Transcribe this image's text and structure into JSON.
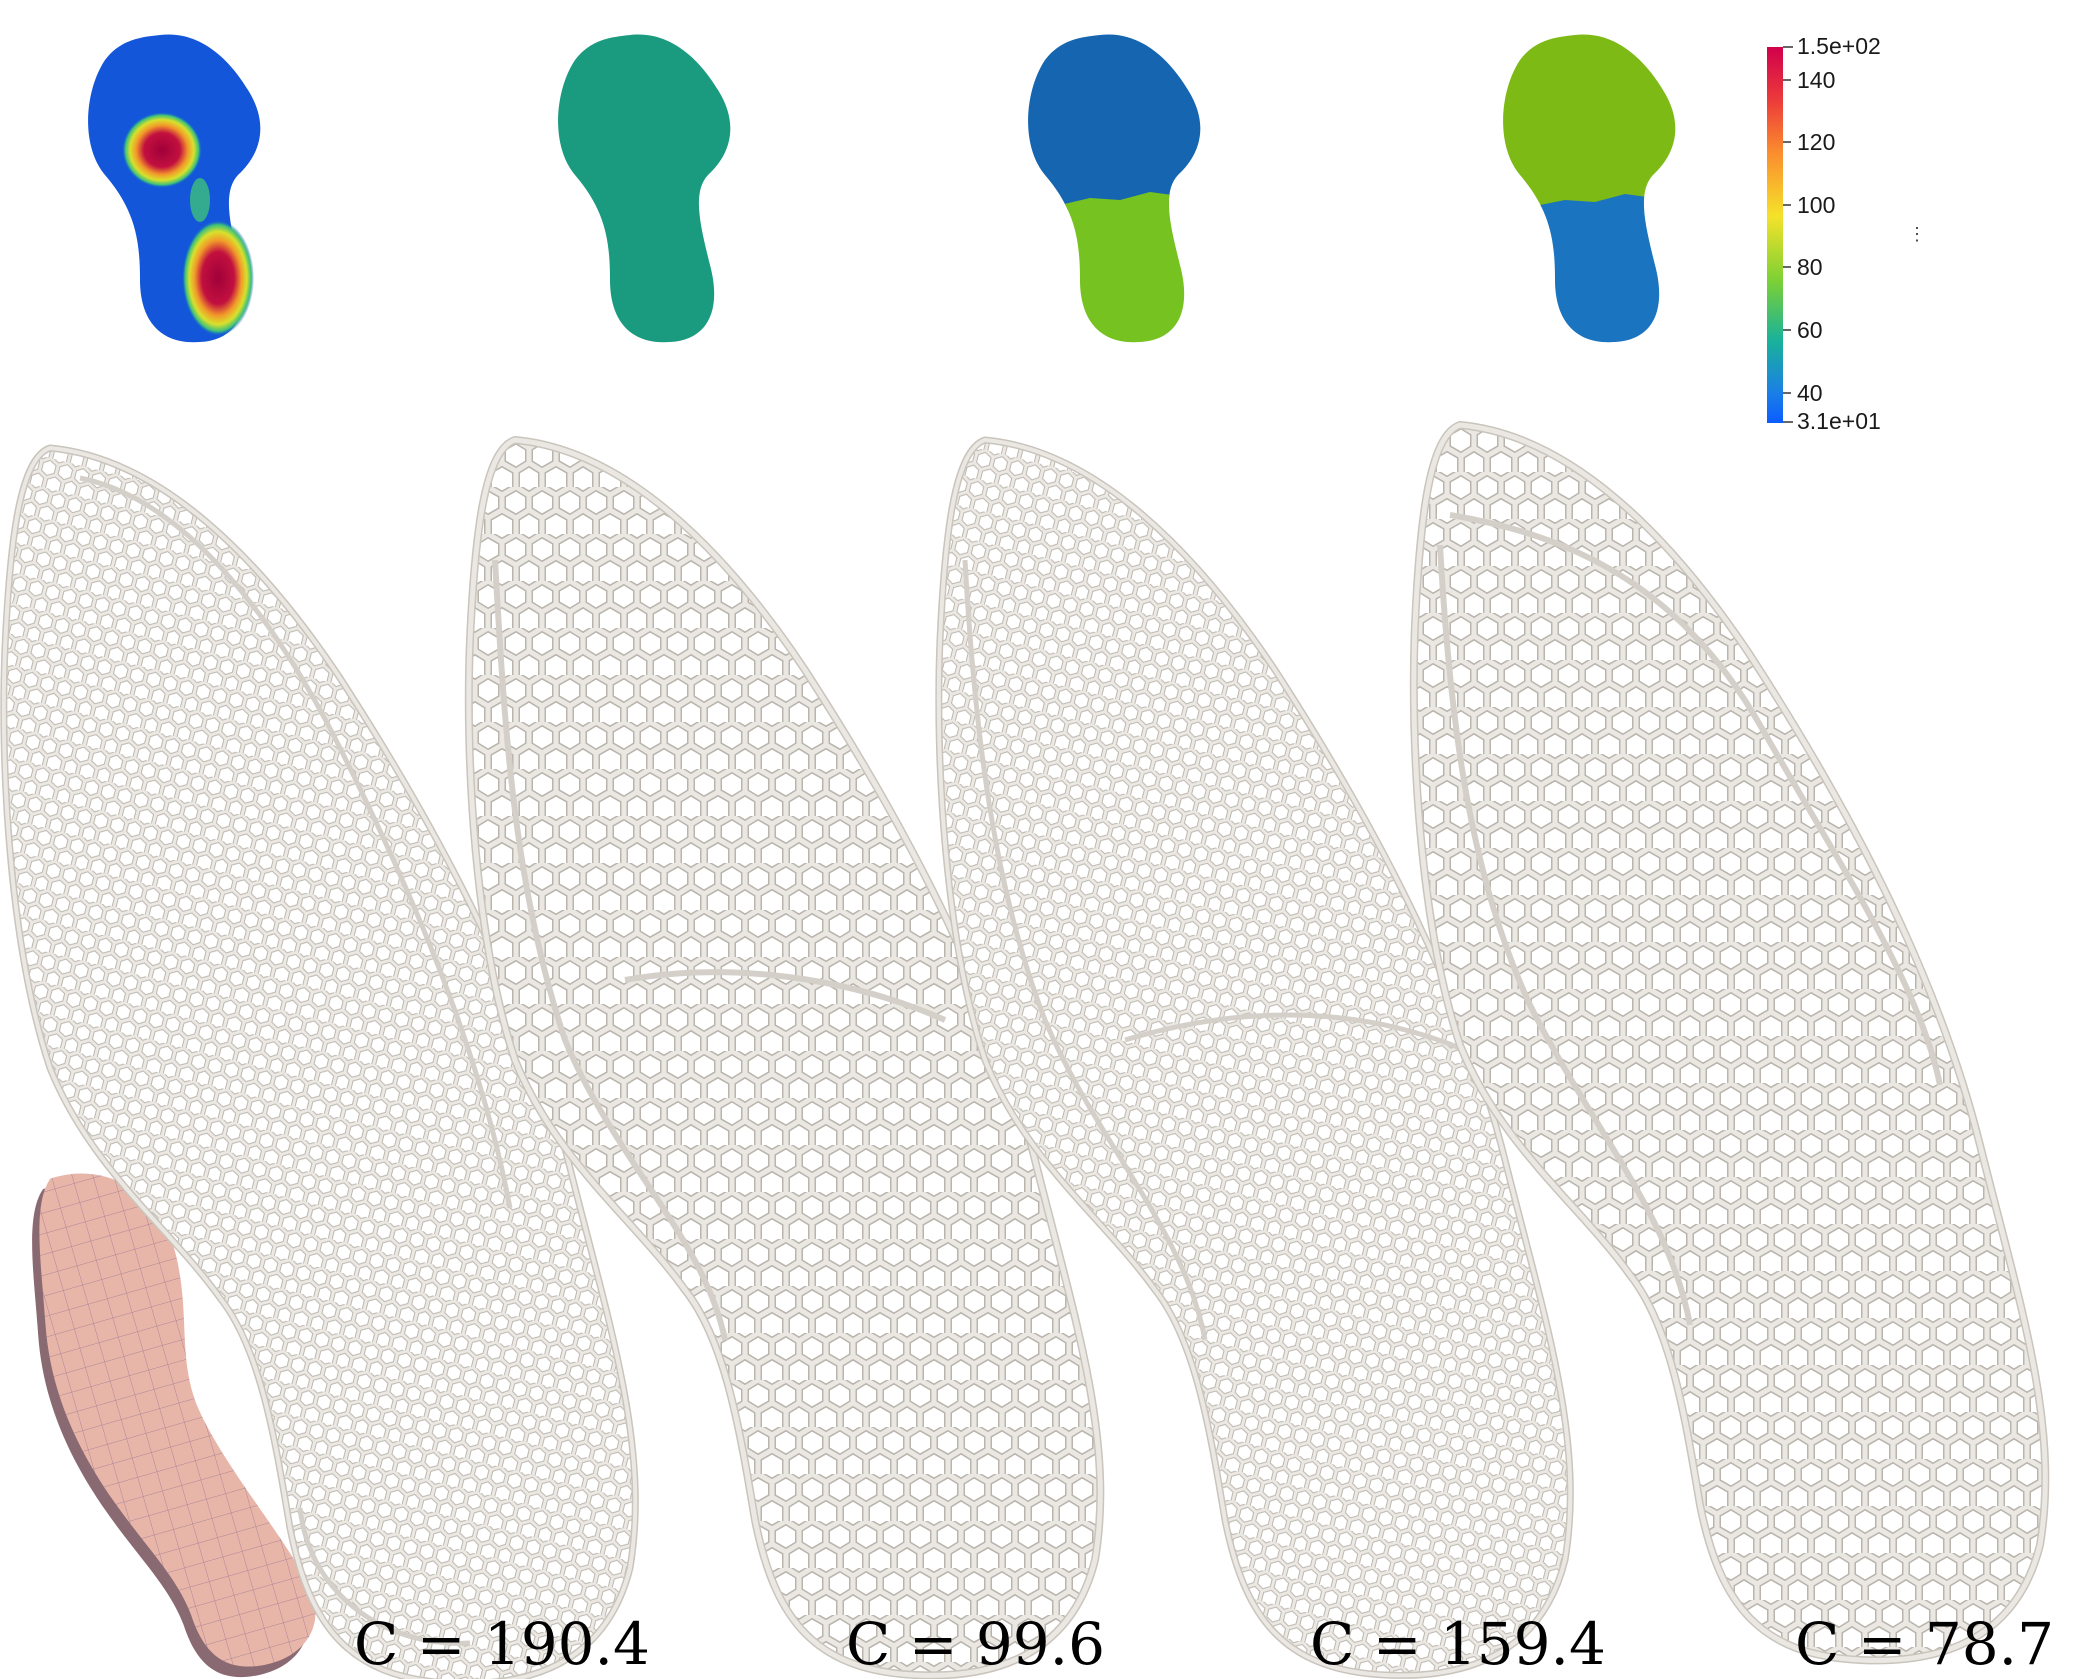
{
  "designs": [
    {
      "id": "d1",
      "label": "C = 190.4",
      "field": "heatmap"
    },
    {
      "id": "d2",
      "label": "C = 99.6",
      "field": "uniform",
      "colors": [
        "#1a9a7f"
      ]
    },
    {
      "id": "d3",
      "label": "C = 159.4",
      "field": "split",
      "colors": [
        "#1565b0",
        "#76c220"
      ]
    },
    {
      "id": "d4",
      "label": "C = 78.7",
      "field": "split",
      "colors": [
        "#7dba16",
        "#1a74c0"
      ]
    }
  ],
  "colorbar": {
    "max_label": "1.5e+02",
    "min_label": "3.1e+01",
    "ticks": [
      "140",
      "120",
      "100",
      "80",
      "60",
      "40"
    ],
    "colors": [
      "#d0004b",
      "#ec3a3a",
      "#fb8c2e",
      "#f5e22a",
      "#7dd134",
      "#19b29a",
      "#1b7fe6",
      "#0a5dff"
    ]
  },
  "mesh_color": "#e8b6a8",
  "lattice_color": "#e6e3de"
}
